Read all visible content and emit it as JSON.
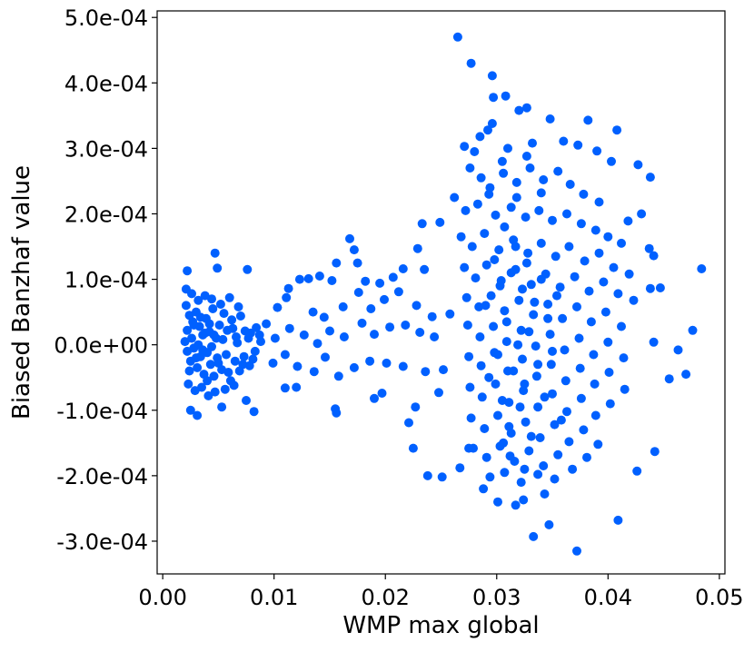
{
  "chart_data": {
    "type": "scatter",
    "xlabel": "WMP max global",
    "ylabel": "Biased Banzhaf value",
    "xlim": [
      -0.0005,
      0.0505
    ],
    "ylim": [
      -0.00035,
      0.00051
    ],
    "xticks": [
      0.0,
      0.01,
      0.02,
      0.03,
      0.04,
      0.05
    ],
    "xtick_labels": [
      "0.00",
      "0.01",
      "0.02",
      "0.03",
      "0.04",
      "0.05"
    ],
    "yticks": [
      -0.0003,
      -0.0002,
      -0.0001,
      0.0,
      0.0001,
      0.0002,
      0.0003,
      0.0004,
      0.0005
    ],
    "ytick_labels": [
      "-3.0e-04",
      "-2.0e-04",
      "-1.0e-04",
      "0.0e+00",
      "1.0e-04",
      "2.0e-04",
      "3.0e-04",
      "4.0e-04",
      "5.0e-04"
    ],
    "grid": false,
    "marker_color": "#0060ff",
    "points": [
      [
        0.0265,
        0.00047
      ],
      [
        0.0277,
        0.00043
      ],
      [
        0.0296,
        0.000411
      ],
      [
        0.0308,
        0.00038
      ],
      [
        0.0297,
        0.000378
      ],
      [
        0.032,
        0.000358
      ],
      [
        0.0327,
        0.000362
      ],
      [
        0.0348,
        0.000345
      ],
      [
        0.0382,
        0.000343
      ],
      [
        0.0408,
        0.000328
      ],
      [
        0.0296,
        0.000338
      ],
      [
        0.0292,
        0.000328
      ],
      [
        0.0285,
        0.000318
      ],
      [
        0.0271,
        0.000303
      ],
      [
        0.028,
        0.000295
      ],
      [
        0.031,
        0.0003
      ],
      [
        0.0332,
        0.000308
      ],
      [
        0.036,
        0.000311
      ],
      [
        0.0373,
        0.000305
      ],
      [
        0.039,
        0.000296
      ],
      [
        0.0427,
        0.000275
      ],
      [
        0.0438,
        0.000256
      ],
      [
        0.0403,
        0.00028
      ],
      [
        0.043,
        0.0002
      ],
      [
        0.0418,
        0.000189
      ],
      [
        0.0437,
        0.000147
      ],
      [
        0.0441,
        0.000136
      ],
      [
        0.0484,
        0.000116
      ],
      [
        0.0447,
        8.7e-05
      ],
      [
        0.0438,
        8.6e-05
      ],
      [
        0.0476,
        2.2e-05
      ],
      [
        0.0463,
        -8e-06
      ],
      [
        0.0441,
        4e-06
      ],
      [
        0.0455,
        -5.2e-05
      ],
      [
        0.047,
        -4.5e-05
      ],
      [
        0.0442,
        -0.000163
      ],
      [
        0.0426,
        -0.000193
      ],
      [
        0.0409,
        -0.000268
      ],
      [
        0.0372,
        -0.000315
      ],
      [
        0.0333,
        -0.000293
      ],
      [
        0.0347,
        -0.000275
      ],
      [
        0.0317,
        -0.000245
      ],
      [
        0.0324,
        -0.000237
      ],
      [
        0.0343,
        -0.000228
      ],
      [
        0.0301,
        -0.00024
      ],
      [
        0.0288,
        -0.00022
      ],
      [
        0.0275,
        -0.000158
      ],
      [
        0.0251,
        -0.000202
      ],
      [
        0.0238,
        -0.0002
      ],
      [
        0.0225,
        -0.000158
      ],
      [
        0.0267,
        -0.000188
      ],
      [
        0.0025,
        -0.0001
      ],
      [
        0.0031,
        -0.000108
      ],
      [
        0.0053,
        -9.5e-05
      ],
      [
        0.0075,
        -8.5e-05
      ],
      [
        0.0082,
        -0.000102
      ],
      [
        0.0022,
        0.000113
      ],
      [
        0.0047,
        0.00014
      ],
      [
        0.0049,
        0.000117
      ],
      [
        0.0076,
        0.000115
      ],
      [
        0.0168,
        0.000162
      ],
      [
        0.0172,
        0.000145
      ],
      [
        0.0156,
        0.000125
      ],
      [
        0.0175,
        0.000125
      ],
      [
        0.0123,
        0.0001
      ],
      [
        0.0131,
        0.000101
      ],
      [
        0.0141,
        0.000105
      ],
      [
        0.0152,
        9.8e-05
      ],
      [
        0.0182,
        9.7e-05
      ],
      [
        0.0195,
        9.4e-05
      ],
      [
        0.0207,
        0.000103
      ],
      [
        0.0216,
        0.000116
      ],
      [
        0.0229,
        0.000147
      ],
      [
        0.0233,
        0.000185
      ],
      [
        0.0249,
        0.000187
      ],
      [
        0.0235,
        0.000115
      ],
      [
        0.0113,
        8.6e-05
      ],
      [
        0.0103,
        5.7e-05
      ],
      [
        0.0111,
        7.2e-05
      ],
      [
        0.0135,
        5e-05
      ],
      [
        0.0145,
        4.2e-05
      ],
      [
        0.0162,
        5.8e-05
      ],
      [
        0.0176,
        8e-05
      ],
      [
        0.0187,
        5.5e-05
      ],
      [
        0.0199,
        6.9e-05
      ],
      [
        0.0212,
        8.1e-05
      ],
      [
        0.0228,
        6e-05
      ],
      [
        0.0242,
        4.3e-05
      ],
      [
        0.0258,
        4.7e-05
      ],
      [
        0.0093,
        3.2e-05
      ],
      [
        0.0101,
        1e-05
      ],
      [
        0.0114,
        2.5e-05
      ],
      [
        0.0127,
        1.5e-05
      ],
      [
        0.0139,
        2e-06
      ],
      [
        0.015,
        2.1e-05
      ],
      [
        0.0163,
        1.2e-05
      ],
      [
        0.0179,
        3.3e-05
      ],
      [
        0.019,
        1.6e-05
      ],
      [
        0.0204,
        2.7e-05
      ],
      [
        0.0218,
        3e-05
      ],
      [
        0.0231,
        1.9e-05
      ],
      [
        0.0244,
        1.2e-05
      ],
      [
        0.0099,
        -2.8e-05
      ],
      [
        0.011,
        -1.5e-05
      ],
      [
        0.0121,
        -3.3e-05
      ],
      [
        0.0136,
        -4.1e-05
      ],
      [
        0.0146,
        -1.9e-05
      ],
      [
        0.0158,
        -4.8e-05
      ],
      [
        0.0172,
        -3.5e-05
      ],
      [
        0.0186,
        -2.5e-05
      ],
      [
        0.0201,
        -2.8e-05
      ],
      [
        0.0216,
        -3.3e-05
      ],
      [
        0.0236,
        -4.1e-05
      ],
      [
        0.0252,
        -3.8e-05
      ],
      [
        0.011,
        -6.6e-05
      ],
      [
        0.012,
        -6.5e-05
      ],
      [
        0.0155,
        -9.8e-05
      ],
      [
        0.0156,
        -0.000104
      ],
      [
        0.019,
        -8.2e-05
      ],
      [
        0.0197,
        -7.4e-05
      ],
      [
        0.0221,
        -0.000119
      ],
      [
        0.0227,
        -9.5e-05
      ],
      [
        0.0248,
        -7.3e-05
      ],
      [
        0.0021,
        6e-05
      ],
      [
        0.0024,
        4.5e-05
      ],
      [
        0.0027,
        3.5e-05
      ],
      [
        0.003,
        5e-05
      ],
      [
        0.0033,
        2.8e-05
      ],
      [
        0.0036,
        1.5e-05
      ],
      [
        0.0039,
        4e-05
      ],
      [
        0.0042,
        2e-05
      ],
      [
        0.0045,
        5.5e-05
      ],
      [
        0.0048,
        1e-05
      ],
      [
        0.0051,
        3e-05
      ],
      [
        0.0055,
        4.8e-05
      ],
      [
        0.0058,
        2.2e-05
      ],
      [
        0.0062,
        3.8e-05
      ],
      [
        0.0066,
        1.2e-05
      ],
      [
        0.007,
        4.4e-05
      ],
      [
        0.0074,
        2.1e-05
      ],
      [
        0.0079,
        1.8e-05
      ],
      [
        0.0084,
        2.6e-05
      ],
      [
        0.0088,
        5e-06
      ],
      [
        0.0022,
        -1e-05
      ],
      [
        0.0025,
        -2.5e-05
      ],
      [
        0.0028,
        -5e-06
      ],
      [
        0.0031,
        -3.5e-05
      ],
      [
        0.0034,
        -1.8e-05
      ],
      [
        0.0037,
        -4.5e-05
      ],
      [
        0.004,
        -1.2e-05
      ],
      [
        0.0043,
        -3e-05
      ],
      [
        0.0046,
        -4.8e-05
      ],
      [
        0.0049,
        -2e-05
      ],
      [
        0.0053,
        -3.8e-05
      ],
      [
        0.0057,
        -1.5e-05
      ],
      [
        0.0061,
        -5.5e-05
      ],
      [
        0.0065,
        -2.5e-05
      ],
      [
        0.0069,
        -4e-05
      ],
      [
        0.0073,
        -1.8e-05
      ],
      [
        0.0078,
        -3.2e-05
      ],
      [
        0.0083,
        -1e-05
      ],
      [
        0.0021,
        8.5e-05
      ],
      [
        0.0026,
        7.8e-05
      ],
      [
        0.0032,
        6.8e-05
      ],
      [
        0.0038,
        7.5e-05
      ],
      [
        0.0044,
        7e-05
      ],
      [
        0.0052,
        6.2e-05
      ],
      [
        0.006,
        7.2e-05
      ],
      [
        0.0068,
        5.8e-05
      ],
      [
        0.0023,
        -6e-05
      ],
      [
        0.0029,
        -7e-05
      ],
      [
        0.0035,
        -6.5e-05
      ],
      [
        0.0041,
        -7.8e-05
      ],
      [
        0.0047,
        -7.2e-05
      ],
      [
        0.0056,
        -6.8e-05
      ],
      [
        0.0064,
        -6.2e-05
      ],
      [
        0.002,
        5e-06
      ],
      [
        0.0022,
        2.2e-05
      ],
      [
        0.0024,
        -4e-05
      ],
      [
        0.0026,
        1e-05
      ],
      [
        0.0028,
        3e-05
      ],
      [
        0.003,
        -2e-05
      ],
      [
        0.0032,
        0.0
      ],
      [
        0.0034,
        4.2e-05
      ],
      [
        0.0036,
        -8e-06
      ],
      [
        0.0038,
        1.8e-05
      ],
      [
        0.004,
        -5.5e-05
      ],
      [
        0.0042,
        3.2e-05
      ],
      [
        0.0044,
        -3e-06
      ],
      [
        0.0046,
        1.5e-05
      ],
      [
        0.005,
        -2.8e-05
      ],
      [
        0.0054,
        8e-06
      ],
      [
        0.0059,
        -4.2e-05
      ],
      [
        0.0063,
        2.5e-05
      ],
      [
        0.0067,
        3e-06
      ],
      [
        0.0072,
        -3e-05
      ],
      [
        0.0077,
        1e-05
      ],
      [
        0.0081,
        -2.2e-05
      ],
      [
        0.0087,
        1.5e-05
      ],
      [
        0.0276,
        0.00027
      ],
      [
        0.0286,
        0.000255
      ],
      [
        0.0294,
        0.00024
      ],
      [
        0.0306,
        0.000262
      ],
      [
        0.0318,
        0.000248
      ],
      [
        0.033,
        0.00027
      ],
      [
        0.0342,
        0.000252
      ],
      [
        0.0355,
        0.000265
      ],
      [
        0.0366,
        0.000245
      ],
      [
        0.0378,
        0.00023
      ],
      [
        0.0392,
        0.000218
      ],
      [
        0.0262,
        0.000225
      ],
      [
        0.0272,
        0.000205
      ],
      [
        0.0283,
        0.000215
      ],
      [
        0.0299,
        0.000198
      ],
      [
        0.0313,
        0.00021
      ],
      [
        0.0326,
        0.000195
      ],
      [
        0.0338,
        0.000205
      ],
      [
        0.035,
        0.00019
      ],
      [
        0.0363,
        0.0002
      ],
      [
        0.0376,
        0.000185
      ],
      [
        0.0389,
        0.000175
      ],
      [
        0.04,
        0.000165
      ],
      [
        0.0412,
        0.000155
      ],
      [
        0.0268,
        0.000165
      ],
      [
        0.0278,
        0.00015
      ],
      [
        0.0289,
        0.00017
      ],
      [
        0.0302,
        0.000145
      ],
      [
        0.0315,
        0.00016
      ],
      [
        0.0328,
        0.00014
      ],
      [
        0.034,
        0.000155
      ],
      [
        0.0353,
        0.000135
      ],
      [
        0.0365,
        0.00015
      ],
      [
        0.0379,
        0.000128
      ],
      [
        0.0392,
        0.00014
      ],
      [
        0.0405,
        0.000118
      ],
      [
        0.0419,
        0.000108
      ],
      [
        0.0271,
        0.000118
      ],
      [
        0.0281,
        0.000102
      ],
      [
        0.0291,
        0.000122
      ],
      [
        0.0304,
        9.8e-05
      ],
      [
        0.0317,
        0.000115
      ],
      [
        0.0331,
        9.2e-05
      ],
      [
        0.0344,
        0.000108
      ],
      [
        0.0357,
        8.8e-05
      ],
      [
        0.037,
        0.000104
      ],
      [
        0.0383,
        8.2e-05
      ],
      [
        0.0396,
        9.6e-05
      ],
      [
        0.0409,
        7.8e-05
      ],
      [
        0.0423,
        6.8e-05
      ],
      [
        0.0273,
        7.2e-05
      ],
      [
        0.0284,
        5.8e-05
      ],
      [
        0.0295,
        7.5e-05
      ],
      [
        0.0307,
        5.2e-05
      ],
      [
        0.032,
        6.8e-05
      ],
      [
        0.0333,
        4.6e-05
      ],
      [
        0.0346,
        6.2e-05
      ],
      [
        0.0359,
        4e-05
      ],
      [
        0.0372,
        5.8e-05
      ],
      [
        0.0385,
        3.5e-05
      ],
      [
        0.0398,
        5e-05
      ],
      [
        0.0412,
        2.8e-05
      ],
      [
        0.0274,
        3e-05
      ],
      [
        0.0285,
        1.2e-05
      ],
      [
        0.0297,
        2.8e-05
      ],
      [
        0.0309,
        5e-06
      ],
      [
        0.0322,
        2.2e-05
      ],
      [
        0.0335,
        -2e-06
      ],
      [
        0.0348,
        1.6e-05
      ],
      [
        0.0361,
        -8e-06
      ],
      [
        0.0374,
        1e-05
      ],
      [
        0.0387,
        -1.5e-05
      ],
      [
        0.04,
        4e-06
      ],
      [
        0.0414,
        -2e-05
      ],
      [
        0.0275,
        -1.8e-05
      ],
      [
        0.0286,
        -3.2e-05
      ],
      [
        0.0298,
        -1.2e-05
      ],
      [
        0.031,
        -4e-05
      ],
      [
        0.0323,
        -2.2e-05
      ],
      [
        0.0336,
        -4.8e-05
      ],
      [
        0.0349,
        -3e-05
      ],
      [
        0.0362,
        -5.5e-05
      ],
      [
        0.0375,
        -3.6e-05
      ],
      [
        0.0388,
        -6e-05
      ],
      [
        0.0401,
        -4.2e-05
      ],
      [
        0.0415,
        -6.8e-05
      ],
      [
        0.0276,
        -6.5e-05
      ],
      [
        0.0287,
        -8e-05
      ],
      [
        0.0299,
        -6e-05
      ],
      [
        0.0311,
        -8.8e-05
      ],
      [
        0.0324,
        -7e-05
      ],
      [
        0.0337,
        -9.5e-05
      ],
      [
        0.035,
        -7.5e-05
      ],
      [
        0.0363,
        -0.000102
      ],
      [
        0.0376,
        -8.2e-05
      ],
      [
        0.0389,
        -0.000108
      ],
      [
        0.0402,
        -9e-05
      ],
      [
        0.0277,
        -0.000112
      ],
      [
        0.0289,
        -0.000128
      ],
      [
        0.0301,
        -0.000108
      ],
      [
        0.0313,
        -0.000135
      ],
      [
        0.0326,
        -0.000118
      ],
      [
        0.0339,
        -0.000142
      ],
      [
        0.0352,
        -0.000122
      ],
      [
        0.0365,
        -0.000148
      ],
      [
        0.0378,
        -0.00013
      ],
      [
        0.0391,
        -0.000152
      ],
      [
        0.0279,
        -0.000158
      ],
      [
        0.0291,
        -0.000172
      ],
      [
        0.0303,
        -0.000155
      ],
      [
        0.0316,
        -0.000178
      ],
      [
        0.0329,
        -0.000162
      ],
      [
        0.0342,
        -0.000185
      ],
      [
        0.0355,
        -0.000168
      ],
      [
        0.0368,
        -0.00019
      ],
      [
        0.0381,
        -0.000172
      ],
      [
        0.0294,
        -0.000202
      ],
      [
        0.0307,
        -0.000195
      ],
      [
        0.0322,
        -0.00021
      ],
      [
        0.0337,
        -0.000198
      ],
      [
        0.0352,
        -0.000205
      ],
      [
        0.029,
        6e-05
      ],
      [
        0.0293,
        -5e-05
      ],
      [
        0.0298,
        0.00013
      ],
      [
        0.0301,
        -1.5e-05
      ],
      [
        0.0303,
        9e-05
      ],
      [
        0.0305,
        -8.5e-05
      ],
      [
        0.0307,
        0.00018
      ],
      [
        0.0309,
        3.5e-05
      ],
      [
        0.0311,
        -0.000125
      ],
      [
        0.0313,
        0.00011
      ],
      [
        0.0315,
        -4e-05
      ],
      [
        0.0317,
        0.00015
      ],
      [
        0.0319,
        0.0
      ],
      [
        0.0321,
        -9.5e-05
      ],
      [
        0.0323,
        8.5e-05
      ],
      [
        0.0325,
        -6e-05
      ],
      [
        0.0327,
        0.000125
      ],
      [
        0.0329,
        2e-05
      ],
      [
        0.0331,
        -0.00014
      ],
      [
        0.0334,
        6.5e-05
      ],
      [
        0.0337,
        -3e-05
      ],
      [
        0.034,
        0.0001
      ],
      [
        0.0343,
        -8e-05
      ],
      [
        0.0346,
        4e-05
      ],
      [
        0.035,
        -1e-05
      ],
      [
        0.0354,
        7.5e-05
      ],
      [
        0.0358,
        -0.000115
      ],
      [
        0.0293,
        0.00023
      ],
      [
        0.0305,
        0.00028
      ],
      [
        0.0318,
        0.000225
      ],
      [
        0.0327,
        0.000288
      ],
      [
        0.034,
        0.000232
      ],
      [
        0.0312,
        -0.00017
      ],
      [
        0.0325,
        -0.00019
      ],
      [
        0.0306,
        -0.00015
      ]
    ]
  }
}
